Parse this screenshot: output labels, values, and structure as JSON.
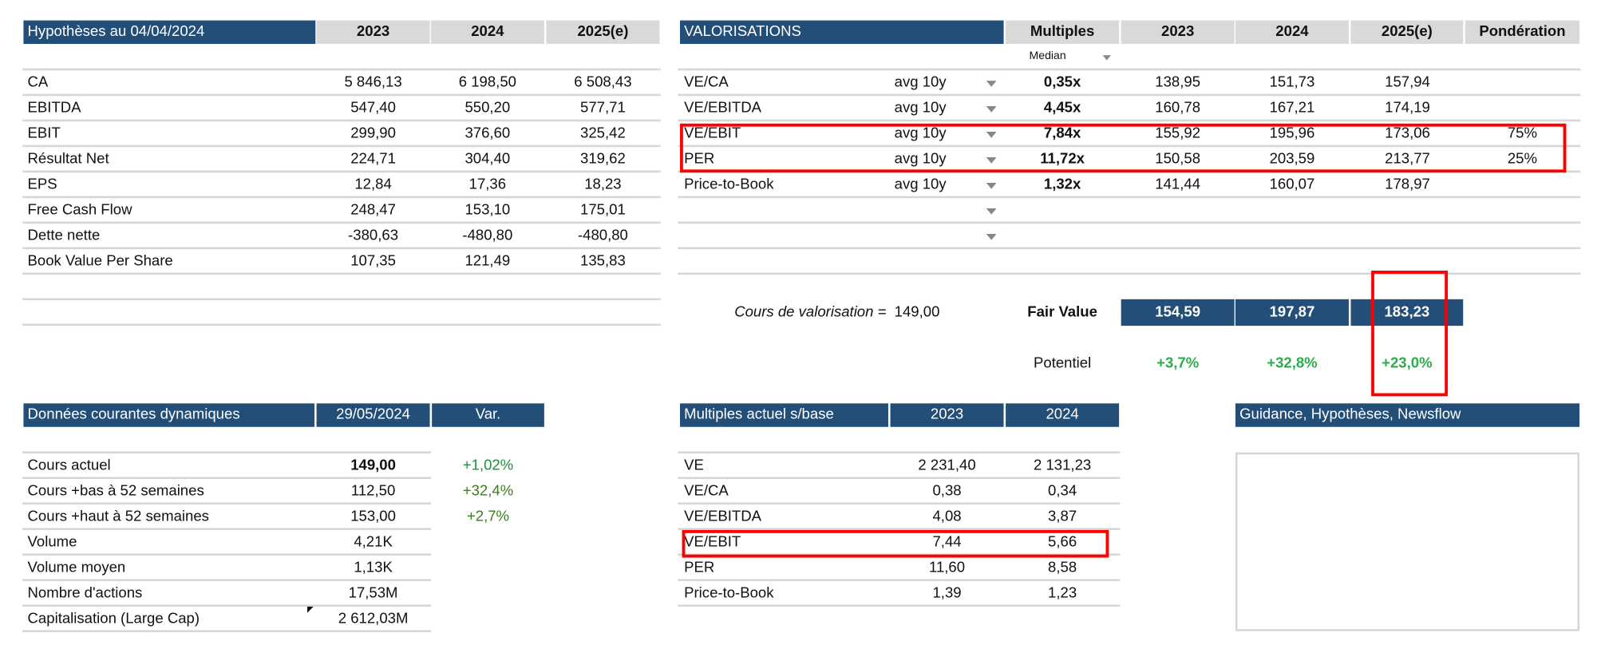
{
  "hypotheses": {
    "title": "Hypothèses au 04/04/2024",
    "columns": [
      "2023",
      "2024",
      "2025(e)"
    ],
    "rows": [
      {
        "label": "CA",
        "values": [
          "5 846,13",
          "6 198,50",
          "6 508,43"
        ]
      },
      {
        "label": "EBITDA",
        "values": [
          "547,40",
          "550,20",
          "577,71"
        ]
      },
      {
        "label": "EBIT",
        "values": [
          "299,90",
          "376,60",
          "325,42"
        ]
      },
      {
        "label": "Résultat Net",
        "values": [
          "224,71",
          "304,40",
          "319,62"
        ]
      },
      {
        "label": "EPS",
        "values": [
          "12,84",
          "17,36",
          "18,23"
        ]
      },
      {
        "label": "Free Cash Flow",
        "values": [
          "248,47",
          "153,10",
          "175,01"
        ]
      },
      {
        "label": "Dette nette",
        "values": [
          "-380,63",
          "-480,80",
          "-480,80"
        ]
      },
      {
        "label": "Book Value Per Share",
        "values": [
          "107,35",
          "121,49",
          "135,83"
        ]
      }
    ]
  },
  "valorisations": {
    "title": "VALORISATIONS",
    "columns": [
      "Multiples",
      "2023",
      "2024",
      "2025(e)",
      "Pondération"
    ],
    "median_select": "Median",
    "rows": [
      {
        "label": "VE/CA",
        "period": "avg 10y",
        "multiple": "0,35x",
        "values": [
          "138,95",
          "151,73",
          "157,94"
        ],
        "weight": ""
      },
      {
        "label": "VE/EBITDA",
        "period": "avg 10y",
        "multiple": "4,45x",
        "values": [
          "160,78",
          "167,21",
          "174,19"
        ],
        "weight": ""
      },
      {
        "label": "VE/EBIT",
        "period": "avg 10y",
        "multiple": "7,84x",
        "values": [
          "155,92",
          "195,96",
          "173,06"
        ],
        "weight": "75%"
      },
      {
        "label": "PER",
        "period": "avg 10y",
        "multiple": "11,72x",
        "values": [
          "150,58",
          "203,59",
          "213,77"
        ],
        "weight": "25%"
      },
      {
        "label": "Price-to-Book",
        "period": "avg 10y",
        "multiple": "1,32x",
        "values": [
          "141,44",
          "160,07",
          "178,97"
        ],
        "weight": ""
      }
    ],
    "cours_label": "Cours de valorisation =",
    "cours_value": "149,00",
    "fair_value_label": "Fair Value",
    "fair_values": [
      "154,59",
      "197,87",
      "183,23"
    ],
    "potentiel_label": "Potentiel",
    "potentiels": [
      "+3,7%",
      "+32,8%",
      "+23,0%"
    ]
  },
  "donnees": {
    "title": "Données courantes dynamiques",
    "date": "29/05/2024",
    "var_label": "Var.",
    "rows": [
      {
        "label": "Cours actuel",
        "value": "149,00",
        "var": "+1,02%"
      },
      {
        "label": "Cours +bas à 52 semaines",
        "value": "112,50",
        "var": "+32,4%"
      },
      {
        "label": "Cours +haut à 52 semaines",
        "value": "153,00",
        "var": "+2,7%"
      },
      {
        "label": "Volume",
        "value": "4,21K",
        "var": ""
      },
      {
        "label": "Volume moyen",
        "value": "1,13K",
        "var": ""
      },
      {
        "label": "Nombre d'actions",
        "value": "17,53M",
        "var": ""
      },
      {
        "label": "Capitalisation (Large Cap)",
        "value": "2 612,03M",
        "var": ""
      }
    ]
  },
  "multiples_actuels": {
    "title": "Multiples actuel s/base",
    "columns": [
      "2023",
      "2024"
    ],
    "rows": [
      {
        "label": "VE",
        "values": [
          "2 231,40",
          "2 131,23"
        ]
      },
      {
        "label": "VE/CA",
        "values": [
          "0,38",
          "0,34"
        ]
      },
      {
        "label": "VE/EBITDA",
        "values": [
          "4,08",
          "3,87"
        ]
      },
      {
        "label": "VE/EBIT",
        "values": [
          "7,44",
          "5,66"
        ]
      },
      {
        "label": "PER",
        "values": [
          "11,60",
          "8,58"
        ]
      },
      {
        "label": "Price-to-Book",
        "values": [
          "1,39",
          "1,23"
        ]
      }
    ]
  },
  "guidance": {
    "title": "Guidance, Hypothèses, Newsflow"
  },
  "colors": {
    "header_blue": "#234e77",
    "header_gray": "#d9d9d9",
    "highlight_red": "#ff0000",
    "positive_green": "#2eaa4f"
  }
}
